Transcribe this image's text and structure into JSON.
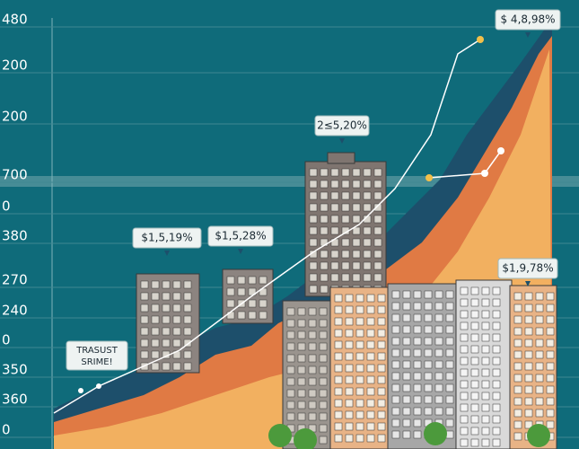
{
  "axis_labels": [
    "480",
    "200",
    "200",
    "700",
    "0",
    "380",
    "270",
    "240",
    "0",
    "350",
    "360",
    "0"
  ],
  "callouts": [
    "$ 4,8,98%",
    "2≤5,20%",
    "$1,5,19%",
    "$1,5,28%",
    "$1,9,78%"
  ],
  "note": [
    "TRASUST",
    "SRIME!"
  ]
}
